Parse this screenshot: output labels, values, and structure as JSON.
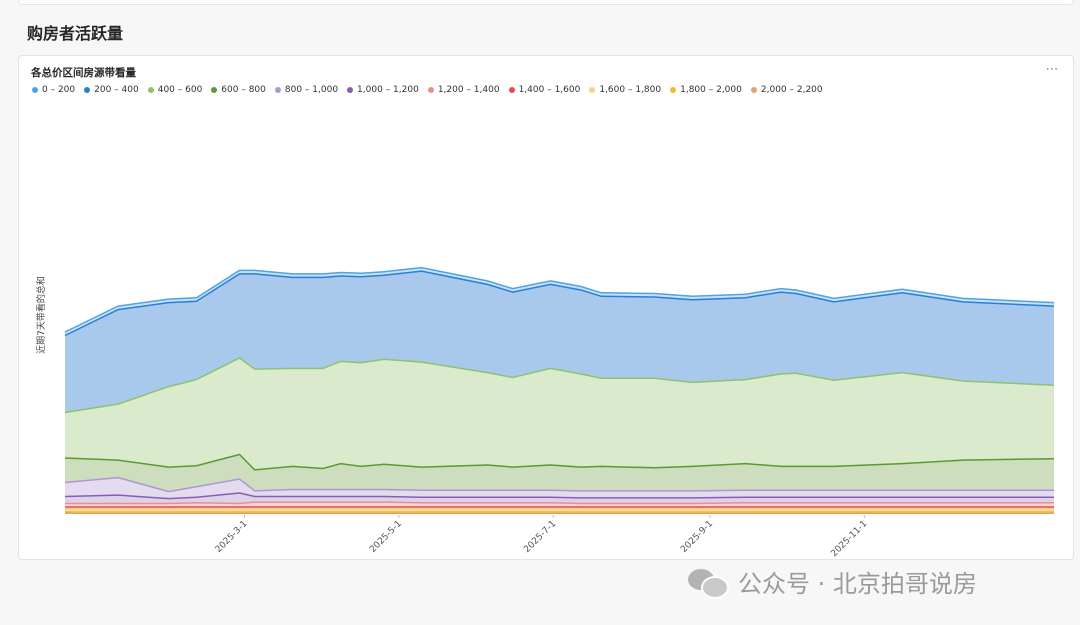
{
  "section_title": "购房者活跃量",
  "panel_title": "各总价区间房源带看量",
  "more_icon": "more-ellipsis-icon",
  "watermark_text": "公众号 · 北京拍哥说房",
  "watermark_icon": "wechat-icon",
  "chart_data": {
    "type": "area",
    "stacked": true,
    "ylabel": "近期7天带看的总和",
    "xlabel": "",
    "x_ticks": [
      {
        "date": "2025-03-01",
        "label": "2025-3-1"
      },
      {
        "date": "2025-05-01",
        "label": "2025-5-1"
      },
      {
        "date": "2025-07-01",
        "label": "2025-7-1"
      },
      {
        "date": "2025-09-01",
        "label": "2025-9-1"
      },
      {
        "date": "2025-11-01",
        "label": "2025-11-1"
      }
    ],
    "x": [
      "2024-12-20",
      "2025-01-10",
      "2025-01-30",
      "2025-02-10",
      "2025-02-27",
      "2025-03-05",
      "2025-03-20",
      "2025-04-01",
      "2025-04-08",
      "2025-04-16",
      "2025-04-25",
      "2025-05-10",
      "2025-06-05",
      "2025-06-15",
      "2025-06-30",
      "2025-07-12",
      "2025-07-20",
      "2025-08-10",
      "2025-08-25",
      "2025-09-15",
      "2025-09-29",
      "2025-10-05",
      "2025-10-20",
      "2025-11-16",
      "2025-12-10",
      "2026-01-15"
    ],
    "legend_position": "top-left",
    "grid": false,
    "series": [
      {
        "name": "0 – 200",
        "color": "#4ea3e8",
        "fill": "#c9e1f6",
        "values": [
          5,
          5,
          5,
          5,
          5,
          5,
          5,
          5,
          5,
          5,
          5,
          5,
          5,
          5,
          5,
          5,
          5,
          5,
          5,
          5,
          5,
          5,
          5,
          5,
          5,
          5
        ]
      },
      {
        "name": "200 – 400",
        "color": "#2a7fd4",
        "fill": "#a8c8ec",
        "values": [
          110,
          135,
          120,
          112,
          120,
          136,
          130,
          130,
          122,
          123,
          120,
          130,
          126,
          122,
          120,
          120,
          117,
          116,
          118,
          117,
          117,
          114,
          112,
          114,
          113,
          113
        ]
      },
      {
        "name": "400 – 600",
        "color": "#8cc46b",
        "fill": "#dbe9cd",
        "values": [
          65,
          80,
          115,
          123,
          138,
          144,
          140,
          143,
          146,
          148,
          150,
          150,
          132,
          128,
          138,
          133,
          126,
          128,
          120,
          120,
          132,
          133,
          123,
          130,
          113,
          105
        ]
      },
      {
        "name": "600 – 800",
        "color": "#5a9a32",
        "fill": "#cdddbd",
        "values": [
          35,
          25,
          35,
          30,
          35,
          30,
          33,
          30,
          37,
          33,
          36,
          33,
          36,
          33,
          36,
          34,
          35,
          33,
          35,
          38,
          34,
          34,
          34,
          38,
          43,
          45
        ]
      },
      {
        "name": "800 – 1,000",
        "color": "#ad97d3",
        "fill": "#e4dbef",
        "values": [
          20,
          25,
          10,
          15,
          20,
          8,
          10,
          10,
          10,
          10,
          10,
          10,
          10,
          10,
          10,
          10,
          10,
          10,
          10,
          10,
          10,
          10,
          10,
          10,
          10,
          10
        ]
      },
      {
        "name": "1,000 – 1,200",
        "color": "#8a5cb5",
        "fill": "#dcd3ea",
        "values": [
          10,
          12,
          7,
          8,
          15,
          8,
          8,
          8,
          8,
          8,
          8,
          8,
          8,
          8,
          8,
          8,
          8,
          8,
          8,
          8,
          8,
          8,
          8,
          8,
          8,
          8
        ]
      },
      {
        "name": "1,200 – 1,400",
        "color": "#ec8e8a",
        "fill": "#f6d6d4",
        "values": [
          5,
          5,
          5,
          6,
          5,
          7,
          7,
          7,
          7,
          7,
          7,
          6,
          6,
          6,
          6,
          5,
          5,
          5,
          5,
          6,
          6,
          6,
          6,
          6,
          6,
          6
        ]
      },
      {
        "name": "1,400 – 1,600",
        "color": "#e0504a",
        "fill": "#f3c7c4",
        "values": [
          4,
          4,
          4,
          4,
          4,
          4,
          4,
          4,
          4,
          4,
          4,
          4,
          4,
          4,
          4,
          4,
          4,
          4,
          4,
          4,
          4,
          4,
          4,
          4,
          4,
          4
        ]
      },
      {
        "name": "1,600 – 1,800",
        "color": "#f5d47a",
        "fill": "#fbecc0",
        "values": [
          3,
          3,
          3,
          3,
          3,
          3,
          3,
          3,
          3,
          3,
          3,
          3,
          3,
          3,
          3,
          3,
          3,
          3,
          3,
          3,
          3,
          3,
          3,
          3,
          3,
          3
        ]
      },
      {
        "name": "1,800 – 2,000",
        "color": "#f2bd2c",
        "fill": "#f8dea0",
        "values": [
          2,
          2,
          2,
          2,
          2,
          2,
          2,
          2,
          2,
          2,
          2,
          2,
          2,
          2,
          2,
          2,
          2,
          2,
          2,
          2,
          2,
          2,
          2,
          2,
          2,
          2
        ]
      },
      {
        "name": "2,000 – 2,200",
        "color": "#e5a06b",
        "fill": "#f4d4bb",
        "values": [
          1,
          1,
          1,
          1,
          1,
          1,
          1,
          1,
          1,
          1,
          1,
          1,
          1,
          1,
          1,
          1,
          1,
          1,
          1,
          1,
          1,
          1,
          1,
          1,
          1,
          1
        ]
      }
    ]
  }
}
